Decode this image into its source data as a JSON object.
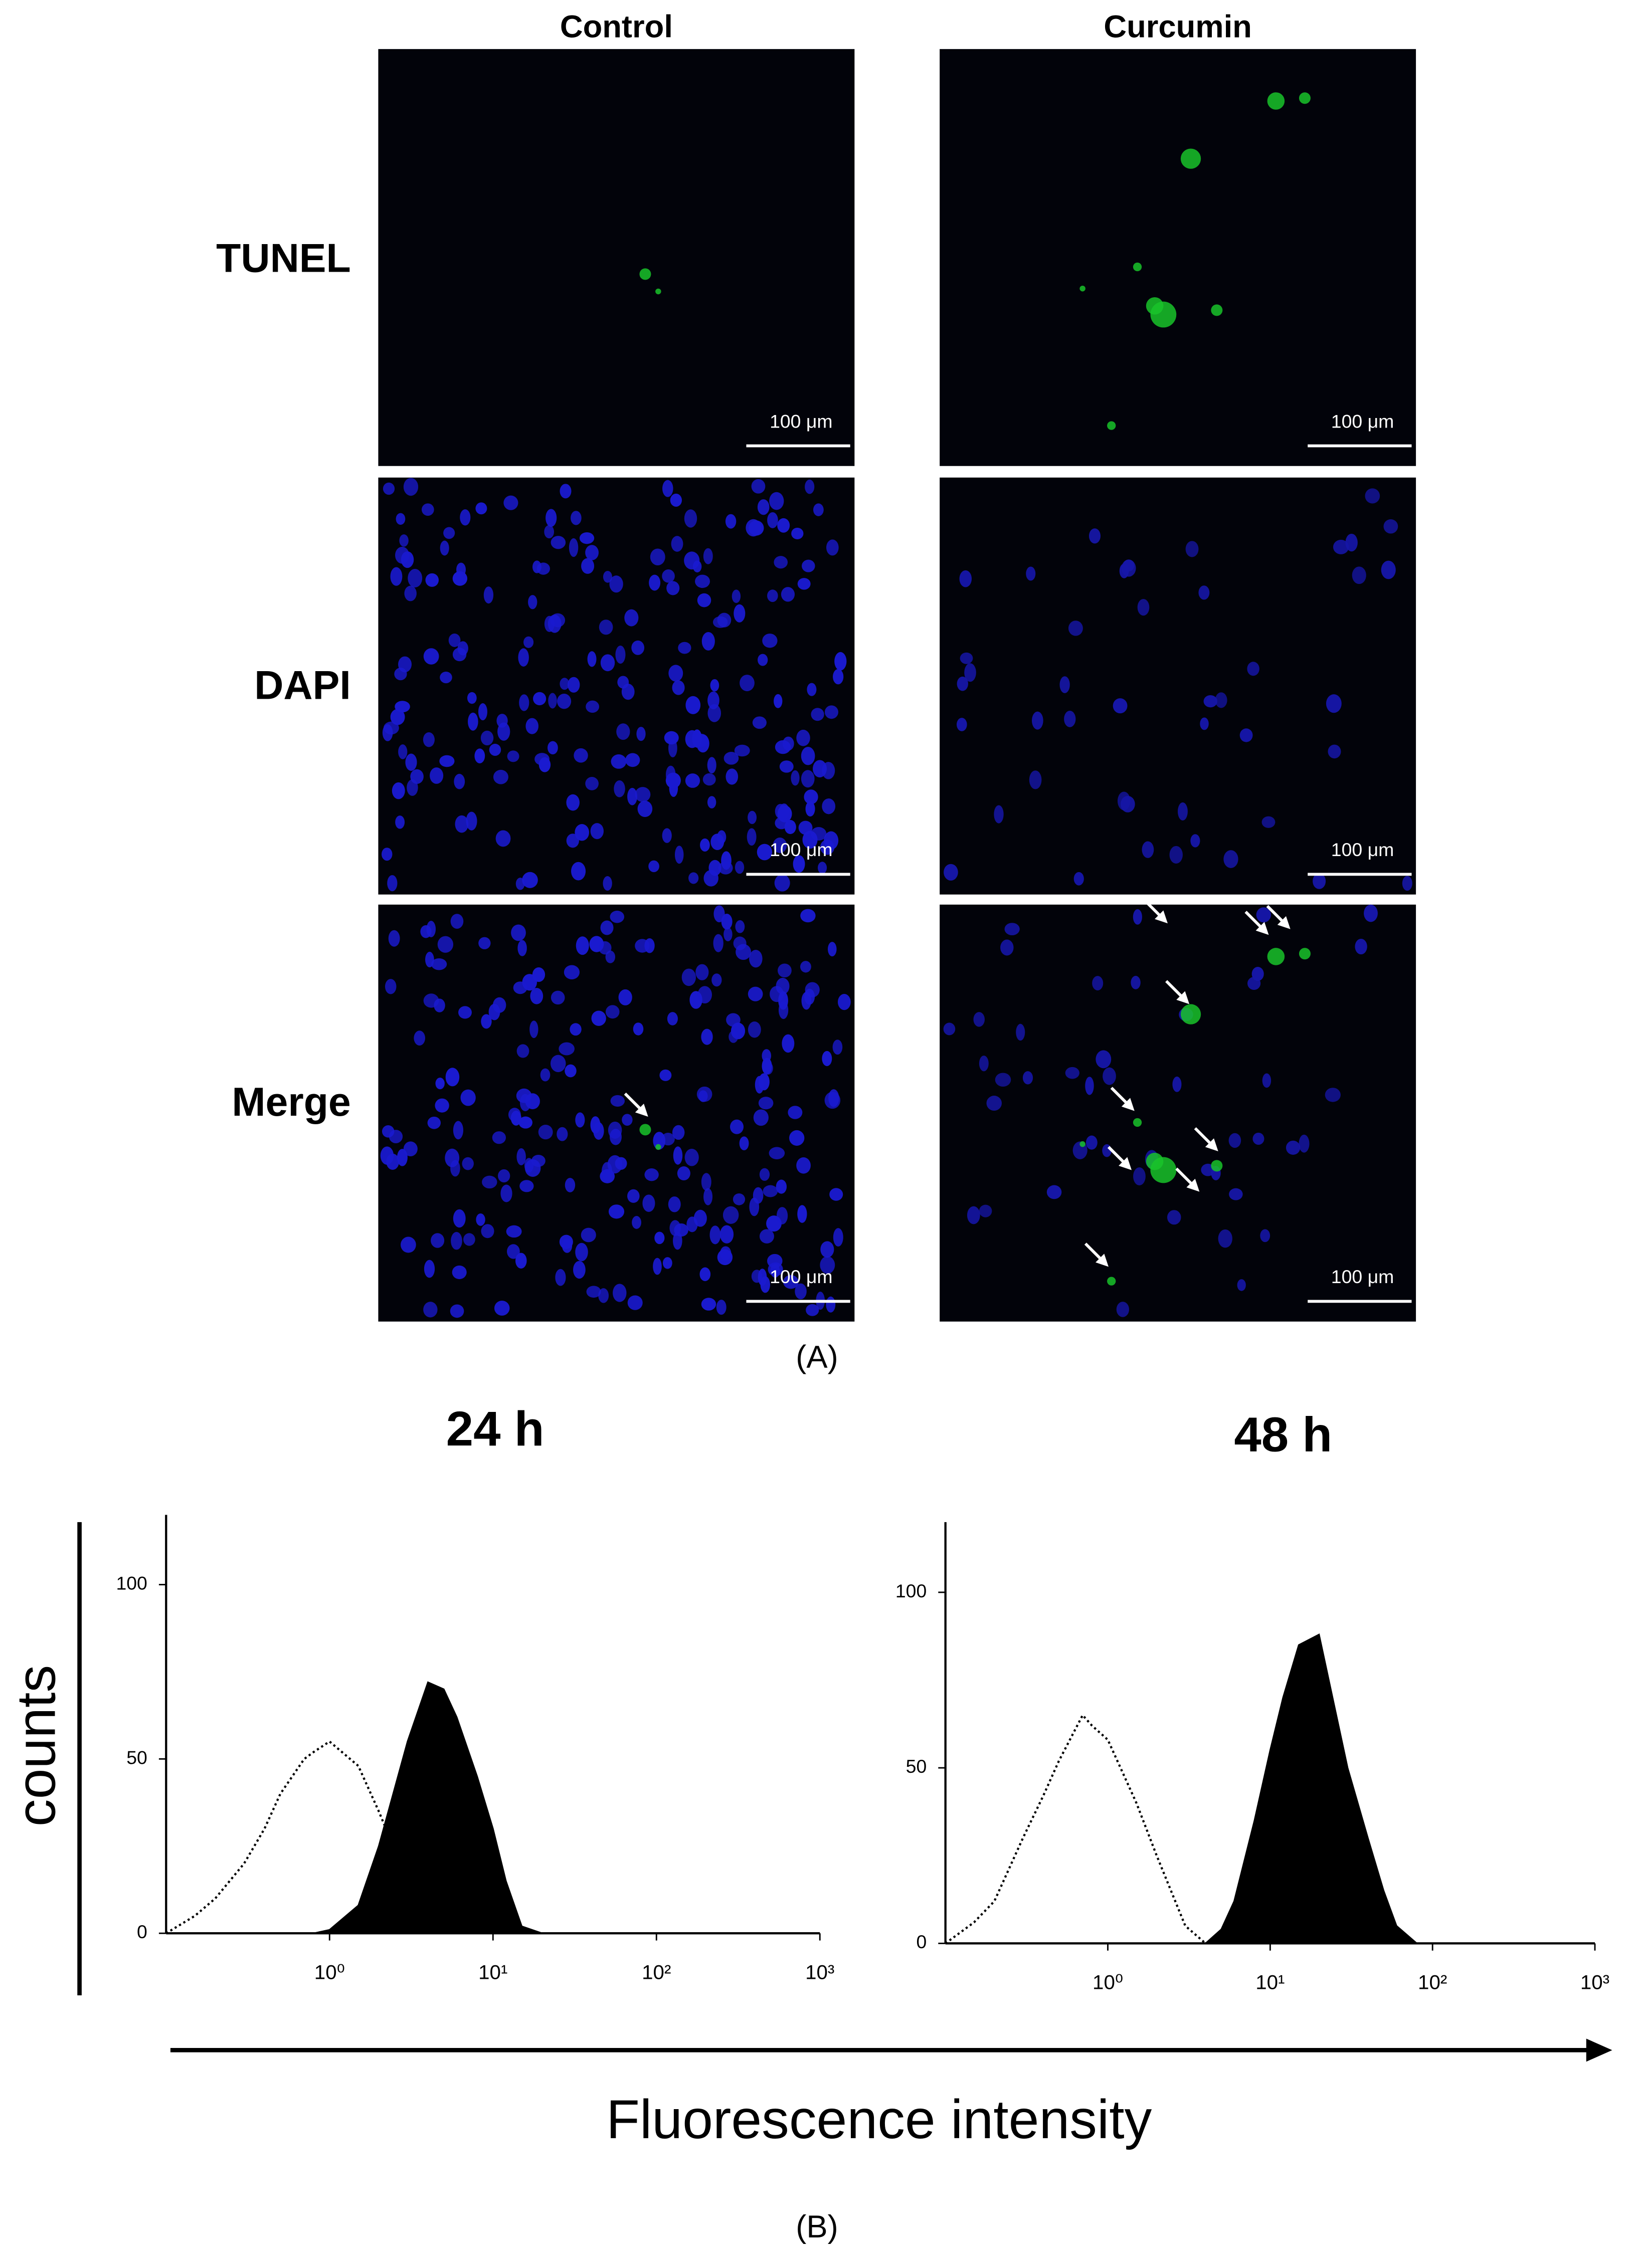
{
  "panel_a": {
    "column_labels": [
      "Control",
      "Curcumin"
    ],
    "row_labels": [
      "TUNEL",
      "DAPI",
      "Merge"
    ],
    "scale_bar_labels": [
      "100 μm",
      "100 μm",
      "100 μm",
      "100 μm",
      "100 μm",
      "100 μm"
    ],
    "caption": "(A)"
  },
  "panel_b": {
    "caption": "(B)",
    "y_label": "counts",
    "x_label": "Fluorescence intensity"
  },
  "chart_data": [
    {
      "type": "area",
      "title": "24 h",
      "log_x": true,
      "grid": false,
      "x": [
        0.1,
        0.15,
        0.2,
        0.3,
        0.4,
        0.5,
        0.7,
        0.8,
        1,
        1.5,
        2,
        3,
        4,
        5,
        6,
        8,
        10,
        12,
        15,
        20,
        30,
        40,
        50,
        60,
        80
      ],
      "xlim": [
        0.1,
        1000
      ],
      "xticks": [
        {
          "value": 1,
          "label": "10⁰"
        },
        {
          "value": 10,
          "label": "10¹"
        },
        {
          "value": 100,
          "label": "10²"
        },
        {
          "value": 1000,
          "label": "10³"
        }
      ],
      "ylim": [
        0,
        120
      ],
      "yticks": [
        0,
        50,
        100
      ],
      "series": [
        {
          "color": "#000000",
          "fill": false,
          "line_style": "dotted",
          "values": [
            0,
            5,
            10,
            20,
            30,
            40,
            50,
            52,
            55,
            48,
            35,
            15,
            7,
            2,
            0,
            null,
            null,
            null,
            null,
            null,
            null,
            null,
            null,
            null,
            null
          ]
        },
        {
          "color": "#000000",
          "fill": true,
          "line_style": "solid",
          "values": [
            null,
            null,
            null,
            null,
            null,
            null,
            null,
            0,
            1,
            8,
            25,
            55,
            72,
            70,
            62,
            45,
            30,
            15,
            2,
            0,
            null,
            null,
            null,
            null,
            null
          ]
        }
      ]
    },
    {
      "type": "area",
      "title": "48 h",
      "log_x": true,
      "grid": false,
      "x": [
        0.1,
        0.15,
        0.2,
        0.3,
        0.4,
        0.5,
        0.7,
        0.8,
        1,
        1.5,
        2,
        3,
        4,
        5,
        6,
        8,
        10,
        12,
        15,
        20,
        30,
        40,
        50,
        60,
        80
      ],
      "xlim": [
        0.1,
        1000
      ],
      "xticks": [
        {
          "value": 1,
          "label": "10⁰"
        },
        {
          "value": 10,
          "label": "10¹"
        },
        {
          "value": 100,
          "label": "10²"
        },
        {
          "value": 1000,
          "label": "10³"
        }
      ],
      "ylim": [
        0,
        120
      ],
      "yticks": [
        0,
        50,
        100
      ],
      "series": [
        {
          "color": "#000000",
          "fill": false,
          "line_style": "dotted",
          "values": [
            0,
            6,
            12,
            30,
            42,
            52,
            65,
            62,
            58,
            40,
            25,
            5,
            0,
            null,
            null,
            null,
            null,
            null,
            null,
            null,
            null,
            null,
            null,
            null,
            null
          ]
        },
        {
          "color": "#000000",
          "fill": true,
          "line_style": "solid",
          "values": [
            null,
            null,
            null,
            null,
            null,
            null,
            null,
            null,
            null,
            null,
            null,
            null,
            0,
            4,
            12,
            35,
            55,
            70,
            85,
            88,
            50,
            30,
            15,
            5,
            0
          ]
        }
      ]
    }
  ]
}
